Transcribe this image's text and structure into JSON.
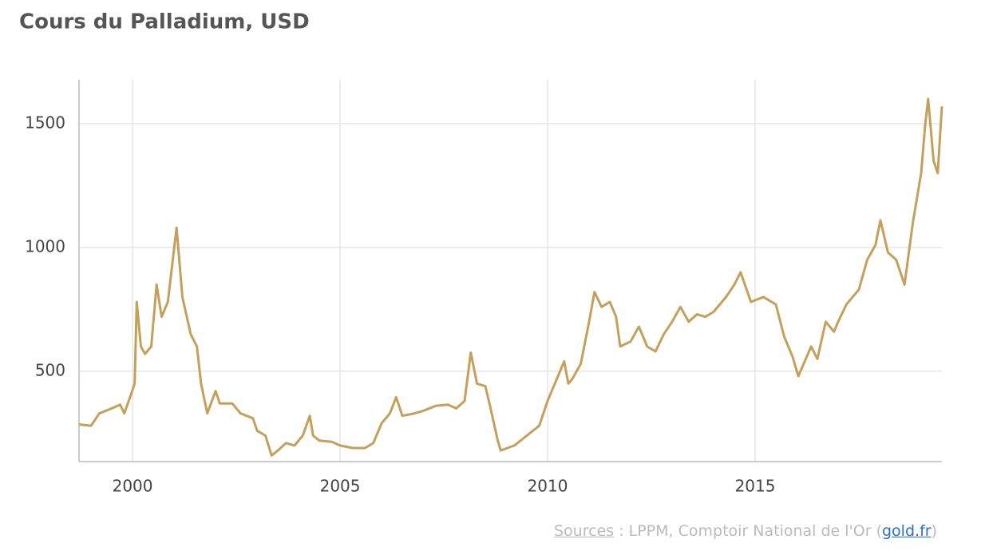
{
  "chart_data": {
    "type": "line",
    "title": "Cours du Palladium, USD",
    "x": [
      1998.71,
      1999.0,
      1999.2,
      1999.5,
      1999.7,
      1999.8,
      1999.95,
      2000.05,
      2000.1,
      2000.2,
      2000.3,
      2000.45,
      2000.58,
      2000.7,
      2000.85,
      2001.06,
      2001.2,
      2001.4,
      2001.55,
      2001.65,
      2001.8,
      2002.0,
      2002.1,
      2002.4,
      2002.6,
      2002.9,
      2003.0,
      2003.2,
      2003.35,
      2003.5,
      2003.7,
      2003.9,
      2004.1,
      2004.27,
      2004.35,
      2004.5,
      2004.8,
      2005.0,
      2005.3,
      2005.6,
      2005.8,
      2006.0,
      2006.2,
      2006.35,
      2006.5,
      2006.8,
      2007.0,
      2007.3,
      2007.6,
      2007.8,
      2008.0,
      2008.15,
      2008.3,
      2008.5,
      2008.6,
      2008.8,
      2008.87,
      2009.2,
      2009.5,
      2009.8,
      2010.0,
      2010.2,
      2010.4,
      2010.5,
      2010.6,
      2010.8,
      2011.0,
      2011.13,
      2011.3,
      2011.5,
      2011.65,
      2011.75,
      2012.0,
      2012.2,
      2012.4,
      2012.6,
      2012.8,
      2013.0,
      2013.2,
      2013.4,
      2013.6,
      2013.8,
      2014.0,
      2014.3,
      2014.5,
      2014.65,
      2014.9,
      2015.2,
      2015.5,
      2015.7,
      2015.9,
      2016.04,
      2016.35,
      2016.5,
      2016.7,
      2016.9,
      2017.0,
      2017.2,
      2017.5,
      2017.7,
      2017.9,
      2018.02,
      2018.2,
      2018.4,
      2018.6,
      2018.8,
      2018.9,
      2019.0,
      2019.1,
      2019.17,
      2019.3,
      2019.4,
      2019.5
    ],
    "series": [
      {
        "name": "Palladium",
        "color": "#c4a05a",
        "values": [
          285,
          280,
          330,
          350,
          365,
          330,
          400,
          450,
          780,
          600,
          570,
          600,
          850,
          720,
          780,
          1080,
          800,
          650,
          600,
          450,
          330,
          420,
          370,
          370,
          330,
          310,
          260,
          240,
          160,
          180,
          210,
          200,
          240,
          320,
          240,
          220,
          215,
          200,
          190,
          190,
          210,
          290,
          330,
          395,
          320,
          330,
          340,
          360,
          365,
          350,
          380,
          575,
          450,
          440,
          370,
          220,
          180,
          200,
          240,
          280,
          380,
          460,
          540,
          450,
          470,
          530,
          700,
          820,
          760,
          780,
          720,
          600,
          620,
          680,
          600,
          580,
          650,
          700,
          760,
          700,
          730,
          720,
          740,
          800,
          850,
          900,
          780,
          800,
          770,
          640,
          560,
          480,
          600,
          550,
          700,
          660,
          700,
          770,
          830,
          950,
          1010,
          1110,
          980,
          950,
          850,
          1100,
          1200,
          1300,
          1500,
          1600,
          1350,
          1300,
          1570
        ]
      }
    ],
    "xlim": [
      1998.71,
      2019.5
    ],
    "xticks": [
      2000,
      2005,
      2010,
      2015
    ],
    "ylim": [
      135,
      1677
    ],
    "yticks": [
      500,
      1000,
      1500
    ],
    "grid": true
  },
  "source": {
    "label": "Sources",
    "text": " : LPPM, Comptoir National de l'Or (",
    "link": "gold.fr",
    "end": ")"
  }
}
